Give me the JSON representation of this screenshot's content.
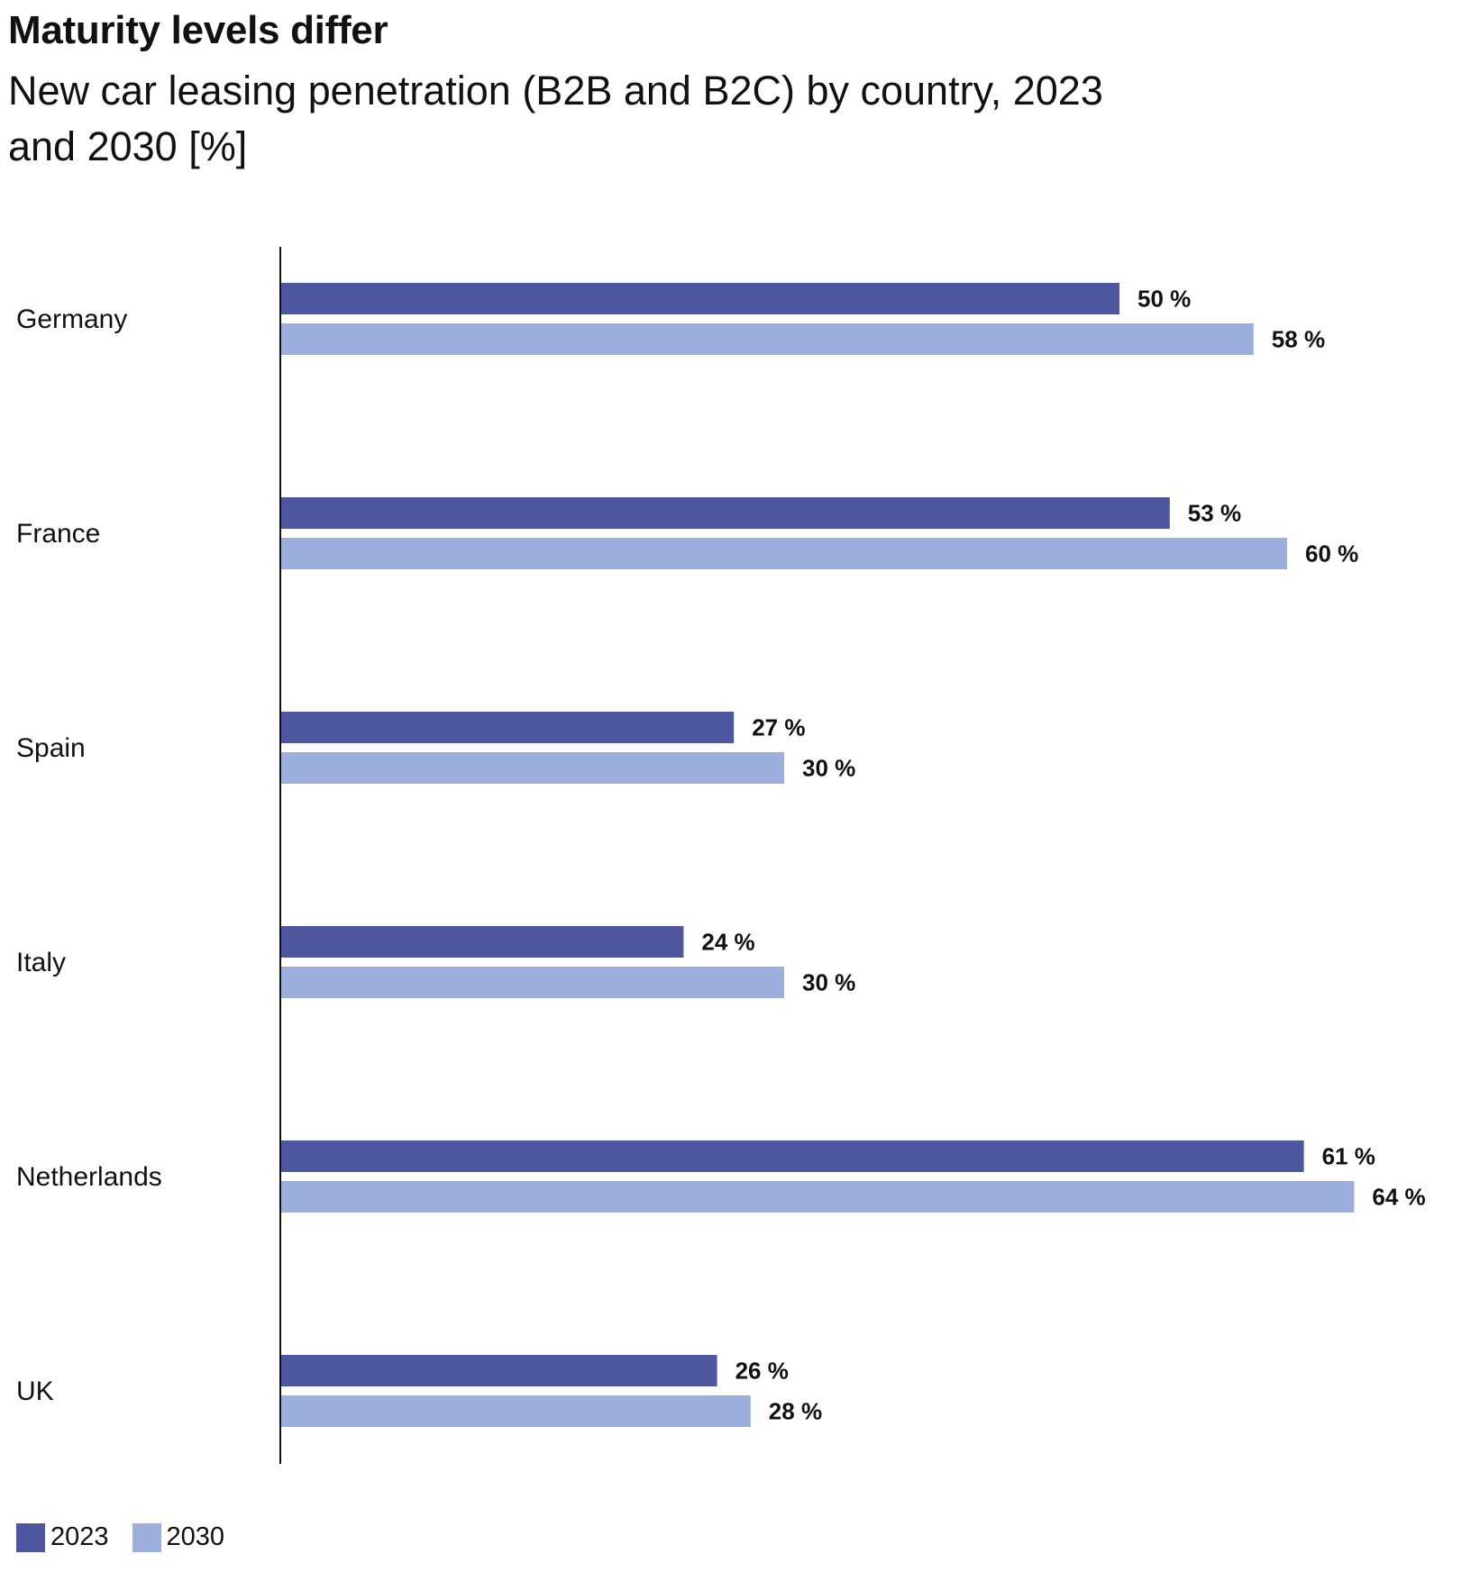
{
  "header": {
    "title": "Maturity levels differ",
    "subtitle": "New car leasing penetration (B2B and B2C) by country, 2023 and 2030 [%]"
  },
  "colors": {
    "series_2023": "#4f56a0",
    "series_2030": "#9caedb",
    "axis": "#111111",
    "text": "#111111"
  },
  "chart_data": {
    "type": "bar",
    "orientation": "horizontal",
    "title": "Maturity levels differ",
    "subtitle": "New car leasing penetration (B2B and B2C) by country, 2023 and 2030 [%]",
    "categories": [
      "Germany",
      "France",
      "Spain",
      "Italy",
      "Netherlands",
      "UK"
    ],
    "series": [
      {
        "name": "2023",
        "values": [
          50,
          53,
          27,
          24,
          61,
          26
        ]
      },
      {
        "name": "2030",
        "values": [
          58,
          60,
          30,
          30,
          64,
          28
        ]
      }
    ],
    "unit_suffix": "%",
    "xlim": [
      0,
      64
    ],
    "xlabel": "",
    "ylabel": "",
    "grid": false,
    "legend_position": "bottom-left"
  }
}
